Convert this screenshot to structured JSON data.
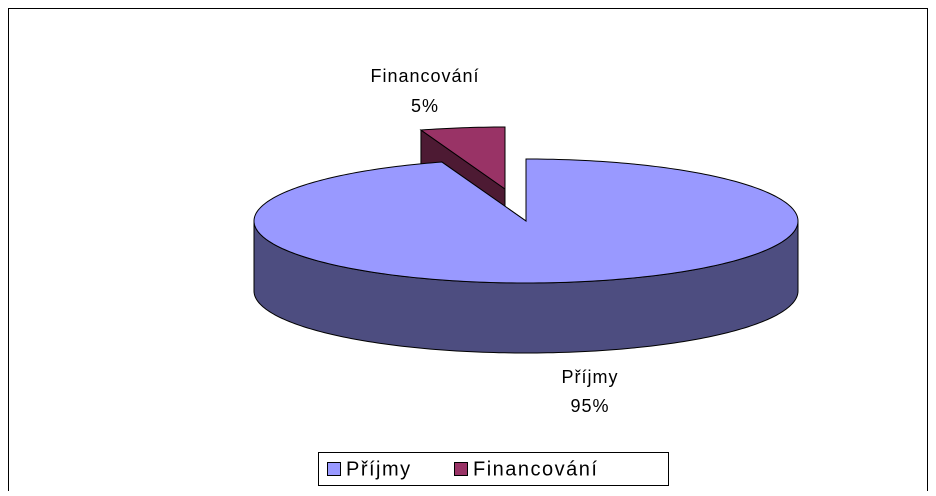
{
  "chart_data": {
    "type": "pie",
    "categories": [
      "Příjmy",
      "Financování"
    ],
    "values": [
      95,
      5
    ],
    "value_labels": [
      "95%",
      "5%"
    ],
    "colors": [
      "#9999ff",
      "#993366"
    ],
    "side_colors": [
      "#4d4d80",
      "#4d1a33"
    ],
    "legend": "bottom"
  }
}
